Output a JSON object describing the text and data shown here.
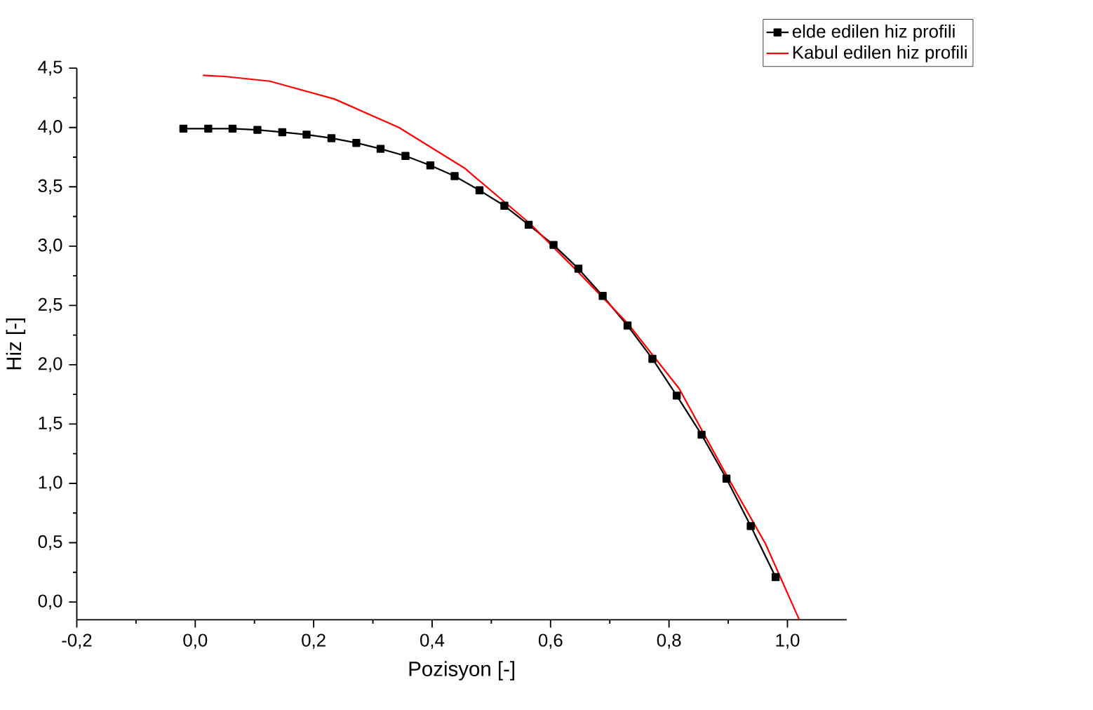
{
  "chart_data": {
    "type": "line",
    "xlabel": "Pozisyon [-]",
    "ylabel": "Hiz [-]",
    "xlim": [
      -0.2,
      1.1
    ],
    "ylim": [
      -0.15,
      4.5
    ],
    "xticks": [
      {
        "value": -0.2,
        "label": "-0,2"
      },
      {
        "value": 0,
        "label": "0,0"
      },
      {
        "value": 0.2,
        "label": "0,2"
      },
      {
        "value": 0.4,
        "label": "0,4"
      },
      {
        "value": 0.6,
        "label": "0,6"
      },
      {
        "value": 0.8,
        "label": "0,8"
      },
      {
        "value": 1.0,
        "label": "1,0"
      }
    ],
    "yticks": [
      {
        "value": 0,
        "label": "0,0"
      },
      {
        "value": 0.5,
        "label": "0,5"
      },
      {
        "value": 1.0,
        "label": "1,0"
      },
      {
        "value": 1.5,
        "label": "1,5"
      },
      {
        "value": 2.0,
        "label": "2,0"
      },
      {
        "value": 2.5,
        "label": "2,5"
      },
      {
        "value": 3.0,
        "label": "3,0"
      },
      {
        "value": 3.5,
        "label": "3,5"
      },
      {
        "value": 4.0,
        "label": "4,0"
      },
      {
        "value": 4.5,
        "label": "4,5"
      }
    ],
    "legend": "top right",
    "grid": false,
    "series": [
      {
        "name": "elde edilen hiz profili",
        "color": "#000000",
        "marker": "square",
        "x": [
          -0.02,
          0.022,
          0.063,
          0.105,
          0.147,
          0.188,
          0.23,
          0.272,
          0.313,
          0.355,
          0.397,
          0.438,
          0.48,
          0.522,
          0.563,
          0.605,
          0.647,
          0.688,
          0.73,
          0.772,
          0.813,
          0.855,
          0.897,
          0.938,
          0.98
        ],
        "values": [
          3.99,
          3.99,
          3.99,
          3.98,
          3.96,
          3.94,
          3.91,
          3.87,
          3.82,
          3.76,
          3.68,
          3.59,
          3.47,
          3.34,
          3.18,
          3.01,
          2.81,
          2.58,
          2.33,
          2.05,
          1.74,
          1.41,
          1.04,
          0.64,
          0.21
        ]
      },
      {
        "name": "Kabul edilen hiz profili",
        "color": "#ff0000",
        "marker": "none",
        "x": [
          0.013,
          0.05,
          0.126,
          0.235,
          0.344,
          0.454,
          0.563,
          0.643,
          0.73,
          0.817,
          0.897,
          0.963,
          1.02
        ],
        "values": [
          4.44,
          4.43,
          4.39,
          4.24,
          4.0,
          3.66,
          3.2,
          2.8,
          2.35,
          1.8,
          1.07,
          0.49,
          -0.15
        ]
      }
    ]
  }
}
